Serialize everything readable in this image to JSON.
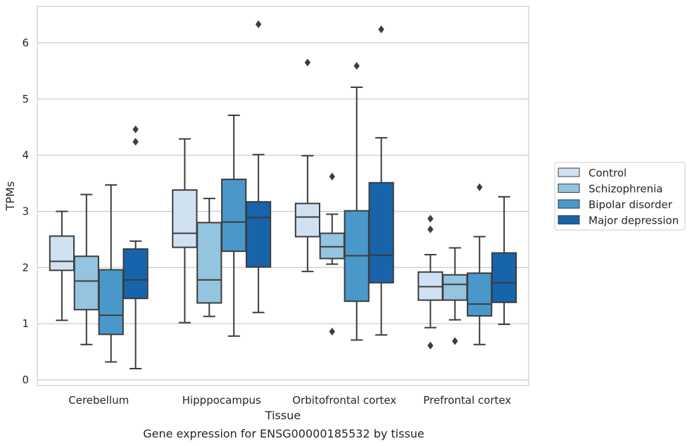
{
  "chart_data": {
    "type": "boxplot",
    "title": "Gene expression for ENSG00000185532 by tissue",
    "xlabel": "Tissue",
    "ylabel": "TPMs",
    "ylim": [
      -0.1,
      6.65
    ],
    "yticks": [
      0,
      1,
      2,
      3,
      4,
      5,
      6
    ],
    "grid": "horizontal",
    "legend_position": "right",
    "categories": [
      "Cerebellum",
      "Hipppocampus",
      "Orbitofrontal cortex",
      "Prefrontal cortex"
    ],
    "series": [
      {
        "name": "Control",
        "color": "#d0e1f2",
        "boxes": [
          {
            "whislo": 1.06,
            "q1": 1.95,
            "med": 2.11,
            "q3": 2.56,
            "whishi": 3.0,
            "fliers": []
          },
          {
            "whislo": 1.02,
            "q1": 2.36,
            "med": 2.61,
            "q3": 3.38,
            "whishi": 4.29,
            "fliers": []
          },
          {
            "whislo": 1.93,
            "q1": 2.55,
            "med": 2.9,
            "q3": 3.14,
            "whishi": 3.99,
            "fliers": [
              5.65
            ]
          },
          {
            "whislo": 0.93,
            "q1": 1.42,
            "med": 1.66,
            "q3": 1.92,
            "whishi": 2.23,
            "fliers": [
              2.87,
              2.68,
              0.61
            ]
          }
        ]
      },
      {
        "name": "Schizophrenia",
        "color": "#94c4df",
        "boxes": [
          {
            "whislo": 0.63,
            "q1": 1.25,
            "med": 1.76,
            "q3": 2.2,
            "whishi": 3.3,
            "fliers": []
          },
          {
            "whislo": 1.13,
            "q1": 1.37,
            "med": 1.78,
            "q3": 2.8,
            "whishi": 3.23,
            "fliers": []
          },
          {
            "whislo": 2.06,
            "q1": 2.16,
            "med": 2.37,
            "q3": 2.61,
            "whishi": 2.95,
            "fliers": [
              3.62,
              0.86
            ]
          },
          {
            "whislo": 1.07,
            "q1": 1.42,
            "med": 1.7,
            "q3": 1.87,
            "whishi": 2.35,
            "fliers": [
              0.69
            ]
          }
        ]
      },
      {
        "name": "Bipolar disorder",
        "color": "#4a98c9",
        "boxes": [
          {
            "whislo": 0.32,
            "q1": 0.81,
            "med": 1.15,
            "q3": 1.96,
            "whishi": 3.47,
            "fliers": []
          },
          {
            "whislo": 0.78,
            "q1": 2.29,
            "med": 2.81,
            "q3": 3.57,
            "whishi": 4.71,
            "fliers": []
          },
          {
            "whislo": 0.71,
            "q1": 1.4,
            "med": 2.21,
            "q3": 3.01,
            "whishi": 5.21,
            "fliers": [
              5.59
            ]
          },
          {
            "whislo": 0.63,
            "q1": 1.14,
            "med": 1.35,
            "q3": 1.9,
            "whishi": 2.55,
            "fliers": [
              3.43
            ]
          }
        ]
      },
      {
        "name": "Major depression",
        "color": "#1764ab",
        "boxes": [
          {
            "whislo": 0.2,
            "q1": 1.45,
            "med": 1.78,
            "q3": 2.33,
            "whishi": 2.47,
            "fliers": [
              4.46,
              4.24
            ]
          },
          {
            "whislo": 1.2,
            "q1": 2.01,
            "med": 2.89,
            "q3": 3.17,
            "whishi": 4.01,
            "fliers": [
              6.33
            ]
          },
          {
            "whislo": 0.8,
            "q1": 1.73,
            "med": 2.22,
            "q3": 3.51,
            "whishi": 4.31,
            "fliers": [
              6.24
            ]
          },
          {
            "whislo": 0.99,
            "q1": 1.38,
            "med": 1.73,
            "q3": 2.26,
            "whishi": 3.26,
            "fliers": []
          }
        ]
      }
    ]
  }
}
